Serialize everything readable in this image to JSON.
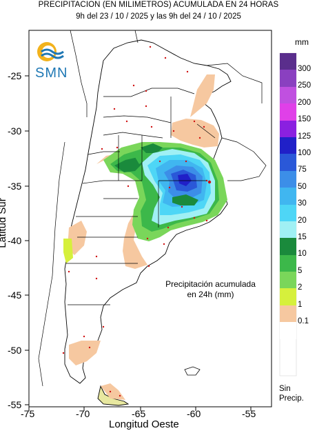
{
  "title_line1": "PRECIPITACION (EN MILIMETROS) ACUMULADA EN 24 HORAS",
  "title_line2": "9h del 23 / 10 / 2025  y las 9h del 24 / 10 / 2025",
  "logo_text": "SMN",
  "legend_unit": "mm",
  "legend": [
    {
      "label": "300",
      "color": "#5a2e8c"
    },
    {
      "label": "250",
      "color": "#8a40c0"
    },
    {
      "label": "200",
      "color": "#c050e0"
    },
    {
      "label": "150",
      "color": "#e040e8"
    },
    {
      "label": "125",
      "color": "#8a20e0"
    },
    {
      "label": "100",
      "color": "#2020c8"
    },
    {
      "label": "75",
      "color": "#2a58d8"
    },
    {
      "label": "50",
      "color": "#3c8ee8"
    },
    {
      "label": "30",
      "color": "#40b6f0"
    },
    {
      "label": "20",
      "color": "#4ed6f6"
    },
    {
      "label": "15",
      "color": "#a0f0f4"
    },
    {
      "label": "10",
      "color": "#1a8a3c"
    },
    {
      "label": "5",
      "color": "#3cb84a"
    },
    {
      "label": "2",
      "color": "#7ad65a"
    },
    {
      "label": "1",
      "color": "#d6f03c"
    },
    {
      "label": "0.1",
      "color": "#f6c8a0"
    }
  ],
  "no_data_line1": "Sin",
  "no_data_line2": "Precip.",
  "annotation_line1": "Precipitación acumulada",
  "annotation_line2": "en 24h (mm)",
  "x_axis_label": "Longitud Oeste",
  "y_axis_label": "Latitud Sur",
  "x_ticks": [
    "-75",
    "-70",
    "-65",
    "-60",
    "-55"
  ],
  "y_ticks": [
    "-25",
    "-30",
    "-35",
    "-40",
    "-45",
    "-50",
    "-55"
  ]
}
